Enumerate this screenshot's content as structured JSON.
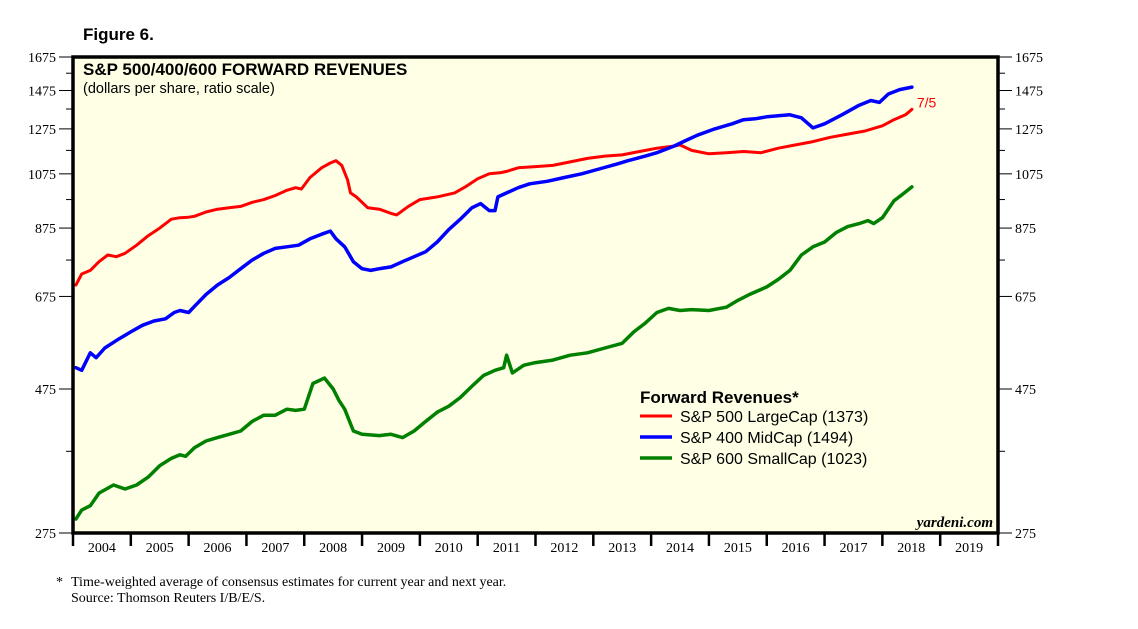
{
  "figure_label": "Figure 6.",
  "footnote": {
    "marker": "*",
    "line1": "Time-weighted average of consensus estimates for current year and next year.",
    "line2": "Source: Thomson Reuters I/B/E/S."
  },
  "brand": "yardeni.com",
  "chart_data": {
    "type": "line",
    "title": "S&P 500/400/600 FORWARD REVENUES",
    "subtitle": "(dollars per share, ratio scale)",
    "xlabel": "",
    "ylabel": "",
    "y_scale": "log",
    "ylim": [
      275,
      1675
    ],
    "y_ticks": [
      275,
      475,
      675,
      875,
      1075,
      1275,
      1475,
      1675
    ],
    "y_minor_ticks": [
      375,
      775,
      975,
      1175,
      1375,
      1575
    ],
    "xlim": [
      2004.0,
      2020.0
    ],
    "x_tick_labels": [
      "2004",
      "2005",
      "2006",
      "2007",
      "2008",
      "2009",
      "2010",
      "2011",
      "2012",
      "2013",
      "2014",
      "2015",
      "2016",
      "2017",
      "2018",
      "2019"
    ],
    "grid": false,
    "legend": {
      "title": "Forward Revenues*",
      "placement": "bottom-right"
    },
    "end_label": "7/5",
    "series": [
      {
        "name": "S&P 500 LargeCap (1373)",
        "color": "#ff0000",
        "last_value": 1373,
        "x": [
          2004.05,
          2004.15,
          2004.3,
          2004.45,
          2004.6,
          2004.75,
          2004.9,
          2005.1,
          2005.3,
          2005.5,
          2005.7,
          2005.85,
          2006.0,
          2006.1,
          2006.3,
          2006.5,
          2006.7,
          2006.9,
          2007.1,
          2007.3,
          2007.5,
          2007.7,
          2007.85,
          2007.95,
          2008.1,
          2008.3,
          2008.45,
          2008.55,
          2008.65,
          2008.75,
          2008.8,
          2008.9,
          2009.1,
          2009.3,
          2009.5,
          2009.6,
          2009.8,
          2010.0,
          2010.3,
          2010.6,
          2010.8,
          2011.0,
          2011.2,
          2011.4,
          2011.5,
          2011.7,
          2012.0,
          2012.3,
          2012.6,
          2012.9,
          2013.2,
          2013.5,
          2013.8,
          2014.1,
          2014.4,
          2014.5,
          2014.7,
          2015.0,
          2015.3,
          2015.6,
          2015.9,
          2016.2,
          2016.5,
          2016.8,
          2017.1,
          2017.4,
          2017.7,
          2018.0,
          2018.2,
          2018.4,
          2018.51
        ],
        "values": [
          705,
          735,
          745,
          770,
          790,
          785,
          795,
          820,
          850,
          875,
          905,
          910,
          912,
          915,
          930,
          940,
          945,
          950,
          965,
          975,
          990,
          1010,
          1020,
          1015,
          1060,
          1100,
          1120,
          1130,
          1110,
          1050,
          1000,
          985,
          945,
          940,
          925,
          920,
          950,
          975,
          985,
          1000,
          1025,
          1055,
          1075,
          1080,
          1085,
          1100,
          1105,
          1110,
          1125,
          1140,
          1150,
          1155,
          1170,
          1185,
          1195,
          1200,
          1175,
          1160,
          1165,
          1170,
          1165,
          1185,
          1200,
          1215,
          1235,
          1250,
          1265,
          1290,
          1320,
          1345,
          1373
        ]
      },
      {
        "name": "S&P 400 MidCap (1494)",
        "color": "#0000ff",
        "last_value": 1494,
        "x": [
          2004.05,
          2004.15,
          2004.3,
          2004.4,
          2004.55,
          2004.8,
          2005.0,
          2005.2,
          2005.4,
          2005.6,
          2005.75,
          2005.85,
          2006.0,
          2006.1,
          2006.3,
          2006.5,
          2006.7,
          2006.9,
          2007.1,
          2007.3,
          2007.5,
          2007.7,
          2007.9,
          2008.1,
          2008.3,
          2008.45,
          2008.55,
          2008.7,
          2008.85,
          2009.0,
          2009.15,
          2009.3,
          2009.5,
          2009.7,
          2009.9,
          2010.1,
          2010.3,
          2010.5,
          2010.7,
          2010.9,
          2011.05,
          2011.2,
          2011.3,
          2011.35,
          2011.5,
          2011.7,
          2011.9,
          2012.2,
          2012.5,
          2012.8,
          2013.1,
          2013.4,
          2013.6,
          2013.9,
          2014.1,
          2014.4,
          2014.6,
          2014.8,
          2015.1,
          2015.4,
          2015.6,
          2015.8,
          2016.0,
          2016.2,
          2016.4,
          2016.6,
          2016.8,
          2017.0,
          2017.3,
          2017.6,
          2017.8,
          2017.95,
          2018.1,
          2018.3,
          2018.51
        ],
        "values": [
          515,
          510,
          545,
          535,
          555,
          575,
          590,
          605,
          615,
          620,
          635,
          640,
          635,
          650,
          680,
          705,
          725,
          750,
          775,
          795,
          810,
          815,
          820,
          840,
          855,
          865,
          840,
          815,
          770,
          750,
          745,
          750,
          755,
          770,
          785,
          800,
          830,
          870,
          905,
          945,
          960,
          935,
          935,
          985,
          1000,
          1020,
          1035,
          1045,
          1060,
          1075,
          1095,
          1115,
          1130,
          1150,
          1165,
          1195,
          1220,
          1245,
          1275,
          1300,
          1320,
          1325,
          1335,
          1340,
          1345,
          1330,
          1280,
          1300,
          1345,
          1395,
          1420,
          1410,
          1455,
          1480,
          1494
        ]
      },
      {
        "name": "S&P 600 SmallCap (1023)",
        "color": "#008000",
        "last_value": 1023,
        "x": [
          2004.05,
          2004.15,
          2004.3,
          2004.45,
          2004.7,
          2004.9,
          2005.1,
          2005.3,
          2005.5,
          2005.7,
          2005.85,
          2005.95,
          2006.1,
          2006.3,
          2006.5,
          2006.7,
          2006.9,
          2007.1,
          2007.3,
          2007.5,
          2007.7,
          2007.85,
          2008.0,
          2008.15,
          2008.35,
          2008.5,
          2008.6,
          2008.7,
          2008.85,
          2009.0,
          2009.3,
          2009.5,
          2009.7,
          2009.9,
          2010.1,
          2010.3,
          2010.5,
          2010.7,
          2010.9,
          2011.1,
          2011.3,
          2011.45,
          2011.5,
          2011.6,
          2011.8,
          2012.0,
          2012.3,
          2012.6,
          2012.9,
          2013.2,
          2013.5,
          2013.7,
          2013.9,
          2014.1,
          2014.3,
          2014.5,
          2014.7,
          2015.0,
          2015.3,
          2015.5,
          2015.7,
          2016.0,
          2016.2,
          2016.4,
          2016.6,
          2016.8,
          2017.0,
          2017.2,
          2017.4,
          2017.6,
          2017.75,
          2017.85,
          2018.0,
          2018.2,
          2018.35,
          2018.51
        ],
        "values": [
          290,
          300,
          305,
          320,
          330,
          325,
          330,
          340,
          355,
          365,
          370,
          368,
          380,
          390,
          395,
          400,
          405,
          420,
          430,
          430,
          440,
          438,
          440,
          485,
          495,
          475,
          455,
          440,
          405,
          400,
          398,
          400,
          395,
          405,
          420,
          435,
          445,
          460,
          480,
          500,
          510,
          515,
          540,
          505,
          520,
          525,
          530,
          540,
          545,
          555,
          565,
          590,
          610,
          635,
          645,
          640,
          642,
          640,
          648,
          665,
          680,
          700,
          720,
          745,
          790,
          815,
          830,
          860,
          880,
          890,
          900,
          890,
          910,
          970,
          995,
          1023
        ]
      }
    ]
  }
}
